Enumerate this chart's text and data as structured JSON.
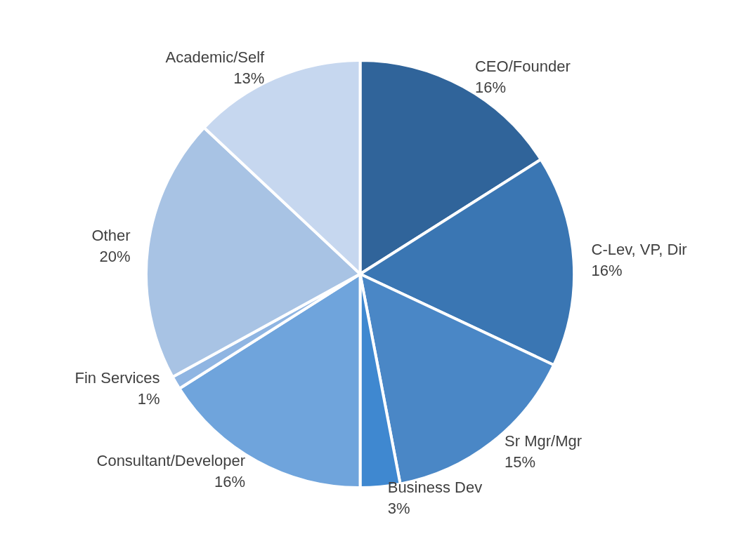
{
  "chart_data": {
    "type": "pie",
    "categories": [
      "CEO/Founder",
      "C-Lev, VP, Dir",
      "Sr Mgr/Mgr",
      "Business Dev",
      "Consultant/Developer",
      "Fin Services",
      "Other",
      "Academic/Self"
    ],
    "values": [
      16,
      16,
      15,
      3,
      16,
      1,
      20,
      13
    ],
    "value_labels": [
      "16%",
      "16%",
      "15%",
      "3%",
      "16%",
      "1%",
      "20%",
      "13%"
    ],
    "colors": [
      "#30649a",
      "#3a76b3",
      "#4a87c6",
      "#3f88d0",
      "#6fa4dc",
      "#8fb5e2",
      "#a8c3e4",
      "#c6d7ef"
    ],
    "legend": false
  }
}
